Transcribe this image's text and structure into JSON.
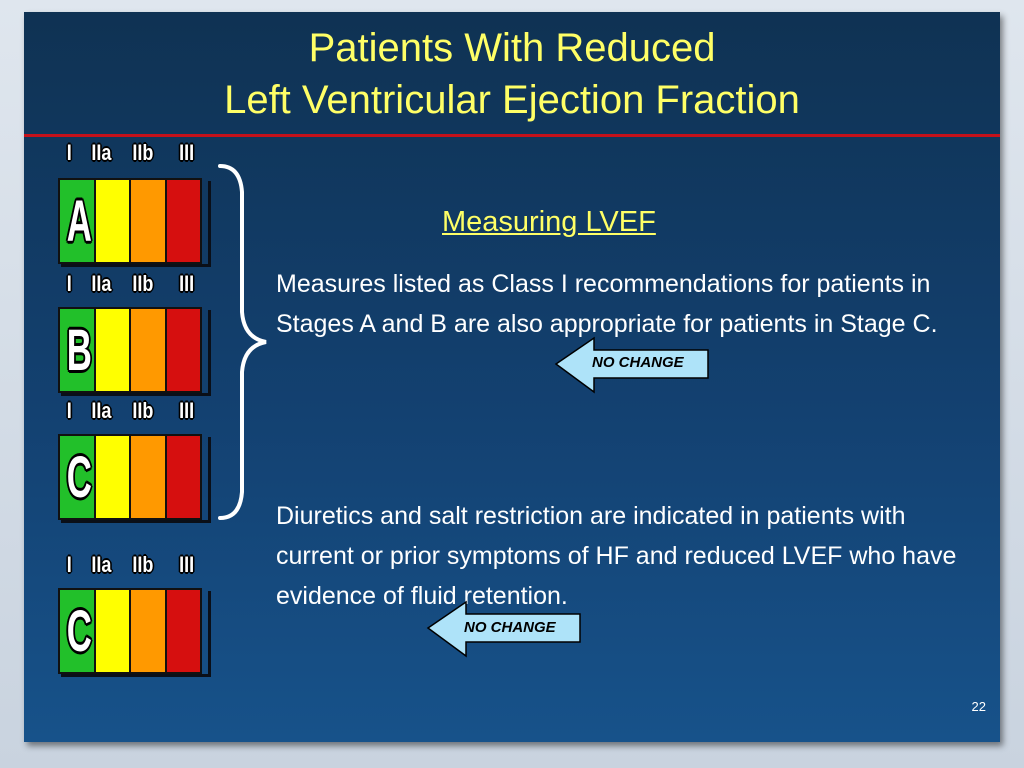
{
  "slide": {
    "title_line1": "Patients With Reduced",
    "title_line2": "Left Ventricular Ejection Fraction",
    "subtitle": "Measuring LVEF",
    "paragraph1": "Measures listed as Class I recommendations for patients in Stages A and B are also appropriate for patients in Stage C.",
    "paragraph2": "Diuretics and salt restriction are indicated in patients with current or prior symptoms of HF and reduced LVEF who have evidence of fluid retention.",
    "badge1": "NO CHANGE",
    "badge2": "NO CHANGE",
    "page_number": "22"
  },
  "class_headers": [
    "I",
    "IIa",
    "IIb",
    "III"
  ],
  "stages": [
    "A",
    "B",
    "C",
    "C"
  ],
  "colors": {
    "title": "#ffff66",
    "rule": "#c5111b",
    "class_I": "#22c02a",
    "class_IIa": "#ffff00",
    "class_IIb": "#ff9900",
    "class_III": "#d60f0f",
    "badge": "#aee3f9"
  }
}
